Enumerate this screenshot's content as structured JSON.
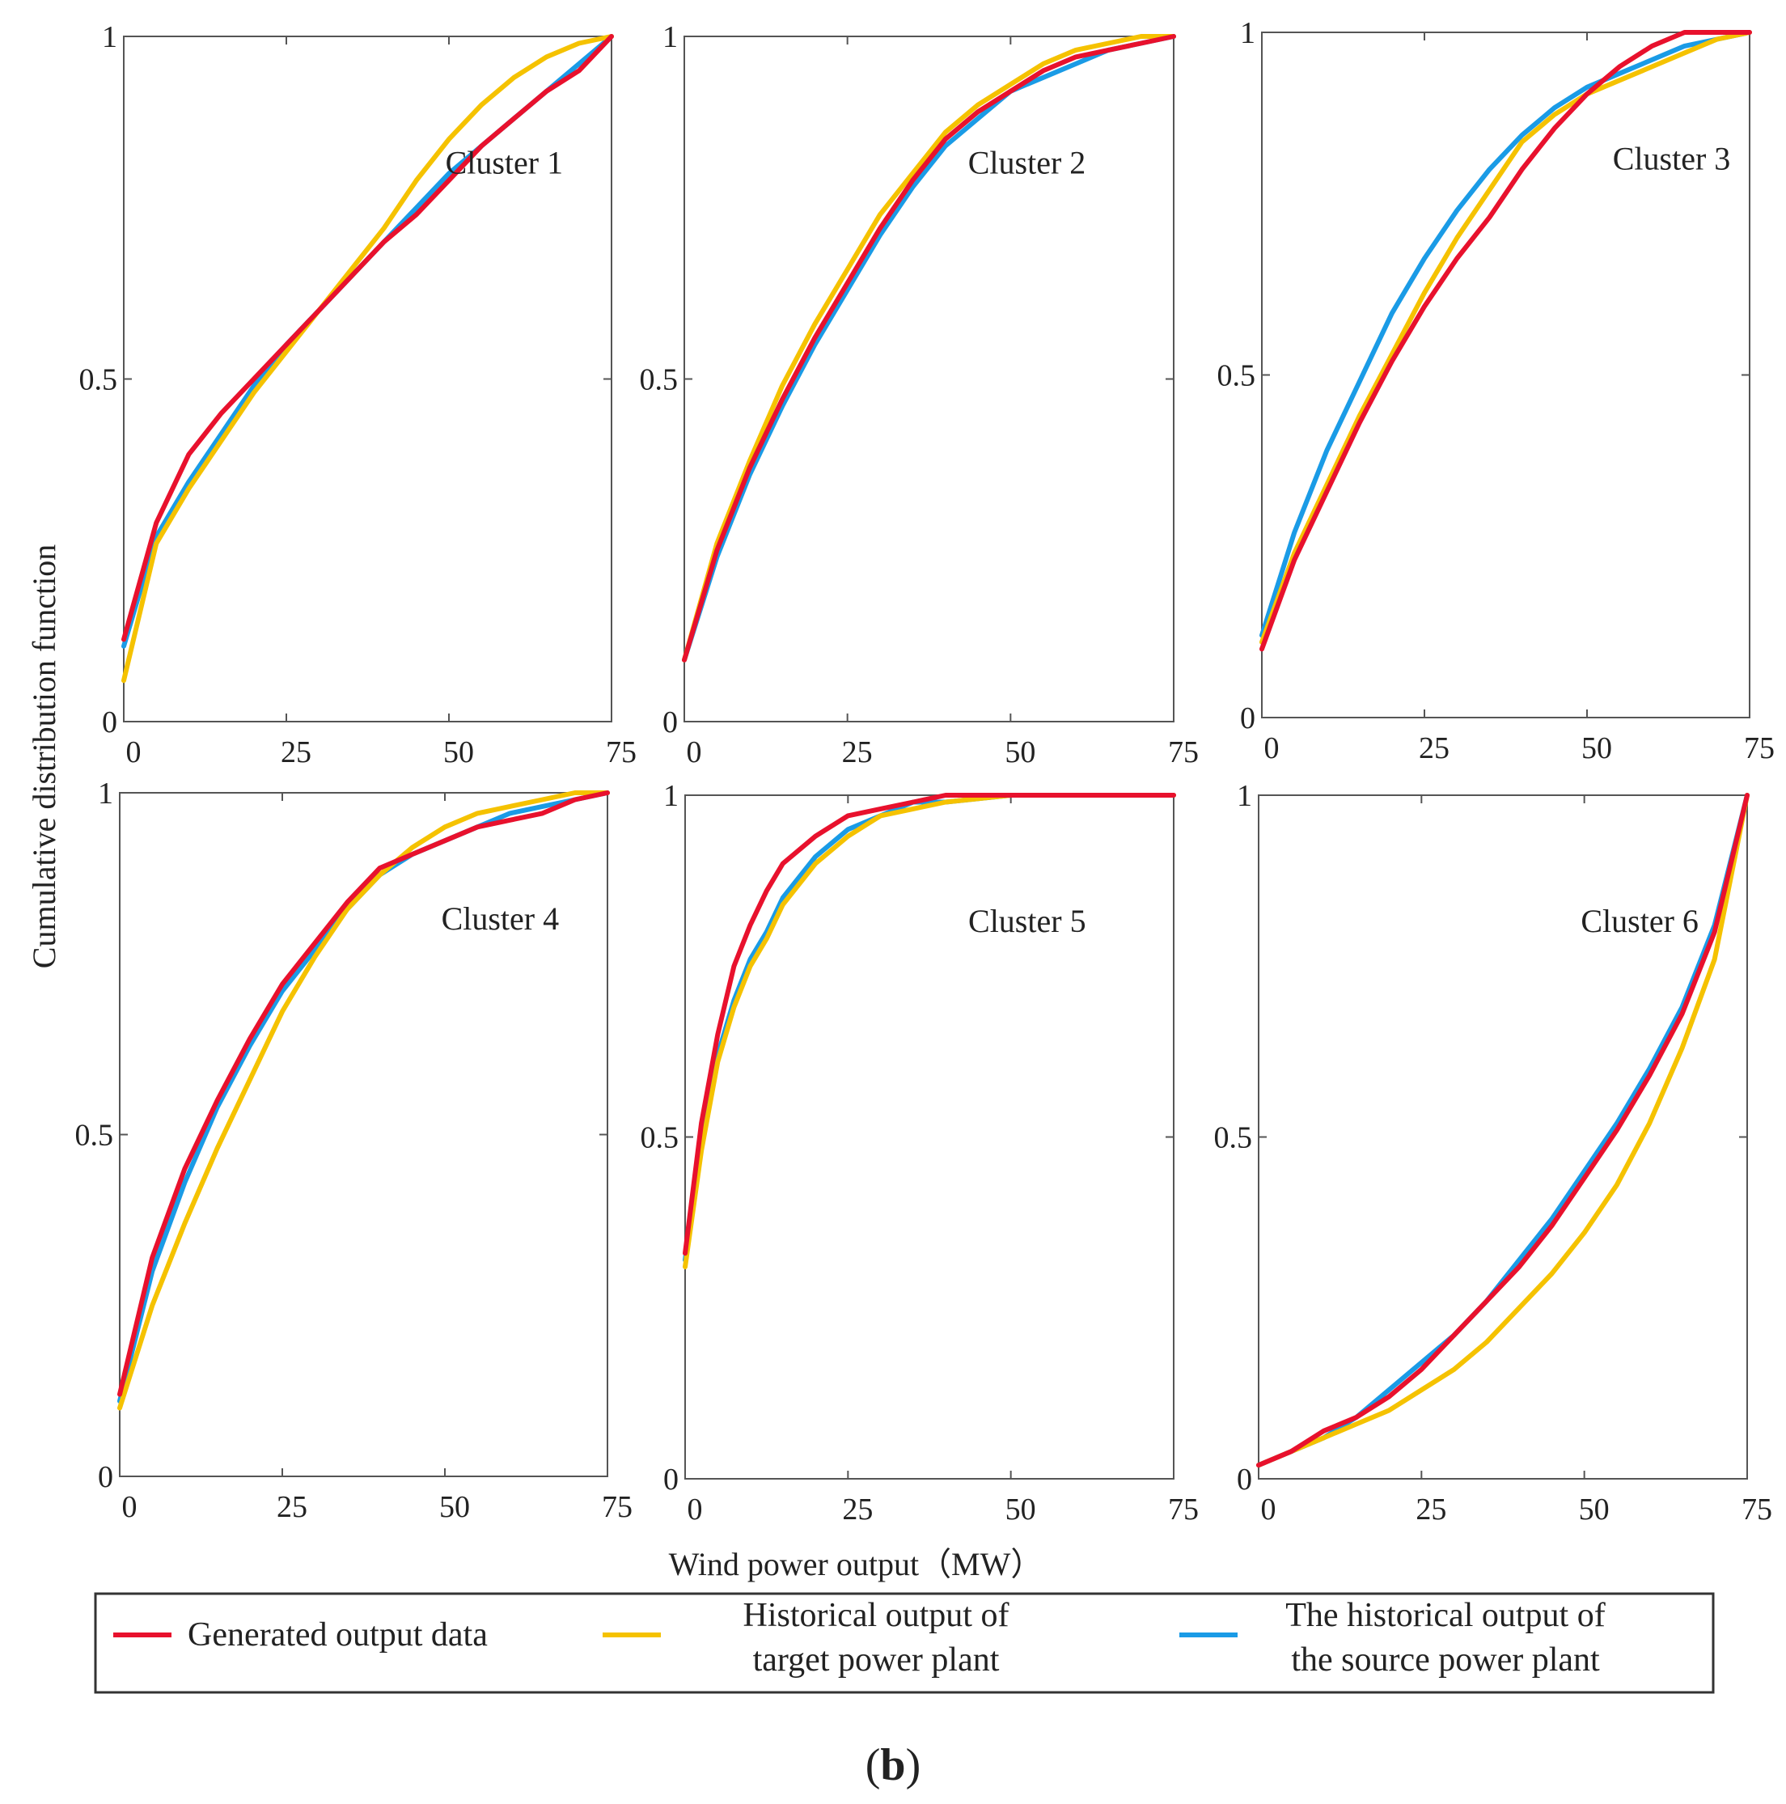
{
  "figure": {
    "panel_tag_open": "(",
    "panel_tag_letter": "b",
    "panel_tag_close": ")",
    "y_axis_title": "Cumulative distribution function",
    "x_axis_title": "Wind power output（MW）"
  },
  "colors": {
    "generated": "#e8112d",
    "target": "#f5c200",
    "source": "#1a9be6",
    "axis": "#555555"
  },
  "legend": {
    "items": [
      {
        "key": "generated",
        "lines": [
          "Generated output data"
        ]
      },
      {
        "key": "target",
        "lines": [
          "Historical output of",
          "target power plant"
        ]
      },
      {
        "key": "source",
        "lines": [
          "The historical output of",
          "the source power plant"
        ]
      }
    ]
  },
  "chart_data": [
    {
      "type": "line",
      "label": "Cluster 1",
      "xlim": [
        0,
        75
      ],
      "ylim": [
        0,
        1
      ],
      "xticks": [
        "0",
        "25",
        "50",
        "75"
      ],
      "yticks": [
        "0",
        "0.5",
        "1"
      ],
      "series": [
        {
          "key": "generated",
          "x": [
            0,
            5,
            10,
            15,
            20,
            25,
            30,
            35,
            40,
            45,
            50,
            55,
            60,
            65,
            70,
            75
          ],
          "y": [
            0.12,
            0.29,
            0.39,
            0.45,
            0.5,
            0.55,
            0.6,
            0.65,
            0.7,
            0.74,
            0.79,
            0.84,
            0.88,
            0.92,
            0.95,
            1.0
          ]
        },
        {
          "key": "target",
          "x": [
            0,
            5,
            10,
            15,
            20,
            25,
            30,
            35,
            40,
            45,
            50,
            55,
            60,
            65,
            70,
            75
          ],
          "y": [
            0.06,
            0.26,
            0.34,
            0.41,
            0.48,
            0.54,
            0.6,
            0.66,
            0.72,
            0.79,
            0.85,
            0.9,
            0.94,
            0.97,
            0.99,
            1.0
          ]
        },
        {
          "key": "source",
          "x": [
            0,
            5,
            10,
            15,
            20,
            25,
            30,
            35,
            40,
            45,
            50,
            55,
            60,
            65,
            70,
            75
          ],
          "y": [
            0.11,
            0.27,
            0.35,
            0.42,
            0.49,
            0.55,
            0.6,
            0.65,
            0.7,
            0.75,
            0.8,
            0.84,
            0.88,
            0.92,
            0.96,
            1.0
          ]
        }
      ]
    },
    {
      "type": "line",
      "label": "Cluster 2",
      "xlim": [
        0,
        75
      ],
      "ylim": [
        0,
        1
      ],
      "xticks": [
        "0",
        "25",
        "50",
        "75"
      ],
      "yticks": [
        "0",
        "0.5",
        "1"
      ],
      "series": [
        {
          "key": "generated",
          "x": [
            0,
            5,
            10,
            15,
            20,
            25,
            30,
            35,
            40,
            45,
            50,
            55,
            60,
            65,
            70,
            75
          ],
          "y": [
            0.09,
            0.25,
            0.37,
            0.47,
            0.56,
            0.64,
            0.72,
            0.79,
            0.85,
            0.89,
            0.92,
            0.95,
            0.97,
            0.98,
            0.99,
            1.0
          ]
        },
        {
          "key": "target",
          "x": [
            0,
            5,
            10,
            15,
            20,
            25,
            30,
            35,
            40,
            45,
            50,
            55,
            60,
            65,
            70,
            75
          ],
          "y": [
            0.09,
            0.26,
            0.38,
            0.49,
            0.58,
            0.66,
            0.74,
            0.8,
            0.86,
            0.9,
            0.93,
            0.96,
            0.98,
            0.99,
            1.0,
            1.0
          ]
        },
        {
          "key": "source",
          "x": [
            0,
            5,
            10,
            15,
            20,
            25,
            30,
            35,
            40,
            45,
            50,
            55,
            60,
            65,
            70,
            75
          ],
          "y": [
            0.09,
            0.24,
            0.36,
            0.46,
            0.55,
            0.63,
            0.71,
            0.78,
            0.84,
            0.88,
            0.92,
            0.94,
            0.96,
            0.98,
            0.99,
            1.0
          ]
        }
      ]
    },
    {
      "type": "line",
      "label": "Cluster 3",
      "xlim": [
        0,
        75
      ],
      "ylim": [
        0,
        1
      ],
      "xticks": [
        "0",
        "25",
        "50",
        "75"
      ],
      "yticks": [
        "0",
        "0.5",
        "1"
      ],
      "series": [
        {
          "key": "generated",
          "x": [
            0,
            5,
            10,
            15,
            20,
            25,
            30,
            35,
            40,
            45,
            50,
            55,
            60,
            65,
            70,
            75
          ],
          "y": [
            0.1,
            0.23,
            0.33,
            0.43,
            0.52,
            0.6,
            0.67,
            0.73,
            0.8,
            0.86,
            0.91,
            0.95,
            0.98,
            1.0,
            1.0,
            1.0
          ]
        },
        {
          "key": "target",
          "x": [
            0,
            5,
            10,
            15,
            20,
            25,
            30,
            35,
            40,
            45,
            50,
            55,
            60,
            65,
            70,
            75
          ],
          "y": [
            0.11,
            0.24,
            0.34,
            0.44,
            0.53,
            0.62,
            0.7,
            0.77,
            0.84,
            0.88,
            0.91,
            0.93,
            0.95,
            0.97,
            0.99,
            1.0
          ]
        },
        {
          "key": "source",
          "x": [
            0,
            5,
            10,
            15,
            20,
            25,
            30,
            35,
            40,
            45,
            50,
            55,
            60,
            65,
            70,
            75
          ],
          "y": [
            0.12,
            0.27,
            0.39,
            0.49,
            0.59,
            0.67,
            0.74,
            0.8,
            0.85,
            0.89,
            0.92,
            0.94,
            0.96,
            0.98,
            0.99,
            1.0
          ]
        }
      ]
    },
    {
      "type": "line",
      "label": "Cluster 4",
      "xlim": [
        0,
        75
      ],
      "ylim": [
        0,
        1
      ],
      "xticks": [
        "0",
        "25",
        "50",
        "75"
      ],
      "yticks": [
        "0",
        "0.5",
        "1"
      ],
      "series": [
        {
          "key": "generated",
          "x": [
            0,
            5,
            10,
            15,
            20,
            25,
            30,
            35,
            40,
            45,
            50,
            55,
            60,
            65,
            70,
            75
          ],
          "y": [
            0.12,
            0.32,
            0.45,
            0.55,
            0.64,
            0.72,
            0.78,
            0.84,
            0.89,
            0.91,
            0.93,
            0.95,
            0.96,
            0.97,
            0.99,
            1.0
          ]
        },
        {
          "key": "target",
          "x": [
            0,
            5,
            10,
            15,
            20,
            25,
            30,
            35,
            40,
            45,
            50,
            55,
            60,
            65,
            70,
            75
          ],
          "y": [
            0.1,
            0.25,
            0.37,
            0.48,
            0.58,
            0.68,
            0.76,
            0.83,
            0.88,
            0.92,
            0.95,
            0.97,
            0.98,
            0.99,
            1.0,
            1.0
          ]
        },
        {
          "key": "source",
          "x": [
            0,
            5,
            10,
            15,
            20,
            25,
            30,
            35,
            40,
            45,
            50,
            55,
            60,
            65,
            70,
            75
          ],
          "y": [
            0.11,
            0.3,
            0.43,
            0.54,
            0.63,
            0.71,
            0.77,
            0.83,
            0.88,
            0.91,
            0.93,
            0.95,
            0.97,
            0.98,
            0.99,
            1.0
          ]
        }
      ]
    },
    {
      "type": "line",
      "label": "Cluster 5",
      "xlim": [
        0,
        75
      ],
      "ylim": [
        0,
        1
      ],
      "xticks": [
        "0",
        "25",
        "50",
        "75"
      ],
      "yticks": [
        "0",
        "0.5",
        "1"
      ],
      "series": [
        {
          "key": "generated",
          "x": [
            0,
            2.5,
            5,
            7.5,
            10,
            12.5,
            15,
            20,
            25,
            30,
            35,
            40,
            50,
            60,
            75
          ],
          "y": [
            0.33,
            0.52,
            0.65,
            0.75,
            0.81,
            0.86,
            0.9,
            0.94,
            0.97,
            0.98,
            0.99,
            1.0,
            1.0,
            1.0,
            1.0
          ]
        },
        {
          "key": "target",
          "x": [
            0,
            2.5,
            5,
            7.5,
            10,
            12.5,
            15,
            20,
            25,
            30,
            35,
            40,
            50,
            60,
            75
          ],
          "y": [
            0.31,
            0.48,
            0.61,
            0.69,
            0.75,
            0.79,
            0.84,
            0.9,
            0.94,
            0.97,
            0.98,
            0.99,
            1.0,
            1.0,
            1.0
          ]
        },
        {
          "key": "source",
          "x": [
            0,
            2.5,
            5,
            7.5,
            10,
            12.5,
            15,
            20,
            25,
            30,
            35,
            40,
            50,
            60,
            75
          ],
          "y": [
            0.32,
            0.49,
            0.62,
            0.7,
            0.76,
            0.8,
            0.85,
            0.91,
            0.95,
            0.97,
            0.99,
            0.99,
            1.0,
            1.0,
            1.0
          ]
        }
      ]
    },
    {
      "type": "line",
      "label": "Cluster 6",
      "xlim": [
        0,
        75
      ],
      "ylim": [
        0,
        1
      ],
      "xticks": [
        "0",
        "25",
        "50",
        "75"
      ],
      "yticks": [
        "0",
        "0.5",
        "1"
      ],
      "series": [
        {
          "key": "generated",
          "x": [
            0,
            5,
            10,
            15,
            20,
            25,
            30,
            35,
            40,
            45,
            50,
            55,
            60,
            65,
            70,
            75
          ],
          "y": [
            0.02,
            0.04,
            0.07,
            0.09,
            0.12,
            0.16,
            0.21,
            0.26,
            0.31,
            0.37,
            0.44,
            0.51,
            0.59,
            0.68,
            0.8,
            1.0
          ]
        },
        {
          "key": "target",
          "x": [
            0,
            5,
            10,
            15,
            20,
            25,
            30,
            35,
            40,
            45,
            50,
            55,
            60,
            65,
            70,
            75
          ],
          "y": [
            0.02,
            0.04,
            0.06,
            0.08,
            0.1,
            0.13,
            0.16,
            0.2,
            0.25,
            0.3,
            0.36,
            0.43,
            0.52,
            0.63,
            0.76,
            1.0
          ]
        },
        {
          "key": "source",
          "x": [
            0,
            5,
            10,
            15,
            20,
            25,
            30,
            35,
            40,
            45,
            50,
            55,
            60,
            65,
            70,
            75
          ],
          "y": [
            0.02,
            0.04,
            0.06,
            0.09,
            0.13,
            0.17,
            0.21,
            0.26,
            0.32,
            0.38,
            0.45,
            0.52,
            0.6,
            0.69,
            0.81,
            1.0
          ]
        }
      ]
    }
  ]
}
